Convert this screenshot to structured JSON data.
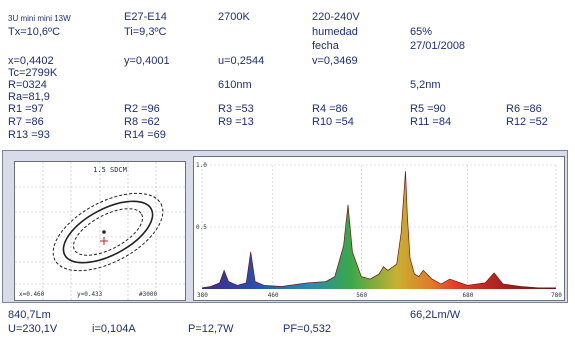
{
  "header": {
    "lamp": "3U mini mini 13W",
    "socket": "E27-E14",
    "cct": "2700K",
    "voltage": "220-240V",
    "tx": "Tx=10,6ºC",
    "ti": "Ti=9,3ºC",
    "humedad_label": "humedad",
    "humedad_value": "65%",
    "fecha_label": "fecha",
    "fecha_value": "27/01/2008"
  },
  "coords": {
    "x": "x=0,4402",
    "y": "y=0,4001",
    "u": "u=0,2544",
    "v": "v=0,3469",
    "tc": "Tc=2799K",
    "r": "R=0324",
    "wavelength": "610nm",
    "bandwidth": "5,2nm",
    "ra": "Ra=81,9"
  },
  "ri": [
    [
      "R1  =97",
      "R2  =96",
      "R3  =53",
      "R4  =86",
      "R5  =90",
      "R6  =86"
    ],
    [
      "R7  =86",
      "R8  =62",
      "R9  =13",
      "R10 =54",
      "R11 =84",
      "R12 =52"
    ],
    [
      "R13 =93",
      "R14 =69"
    ]
  ],
  "left_plot": {
    "title": "1.5 SDCM",
    "bottom_x": "x=0.460",
    "bottom_y": "y=0.433",
    "bottom_k": "#3000"
  },
  "spectrum": {
    "y_ticks": [
      "1.0",
      "0.5"
    ],
    "x_ticks": [
      "380",
      "460",
      "560",
      "680",
      "780"
    ]
  },
  "chart_data": {
    "type": "line",
    "x": [
      380,
      390,
      400,
      405,
      410,
      420,
      430,
      435,
      440,
      450,
      470,
      490,
      500,
      520,
      530,
      540,
      545,
      550,
      560,
      570,
      580,
      585,
      590,
      600,
      605,
      610,
      612,
      615,
      620,
      625,
      630,
      640,
      650,
      660,
      680,
      700,
      710,
      720,
      740,
      760,
      780
    ],
    "y": [
      0.01,
      0.02,
      0.05,
      0.15,
      0.06,
      0.03,
      0.05,
      0.3,
      0.06,
      0.03,
      0.02,
      0.04,
      0.05,
      0.06,
      0.1,
      0.35,
      0.68,
      0.3,
      0.1,
      0.08,
      0.12,
      0.18,
      0.15,
      0.2,
      0.45,
      0.95,
      0.6,
      0.25,
      0.12,
      0.1,
      0.15,
      0.08,
      0.04,
      0.08,
      0.03,
      0.05,
      0.13,
      0.04,
      0.02,
      0.01,
      0.01
    ],
    "xlim": [
      380,
      780
    ],
    "ylim": [
      0,
      1.0
    ]
  },
  "footer": {
    "lumens": "840,7Lm",
    "efficacy": "66,2Lm/W",
    "u": "U=230,1V",
    "i": "i=0,104A",
    "p": "P=12,7W",
    "pf": "PF=0,532"
  }
}
